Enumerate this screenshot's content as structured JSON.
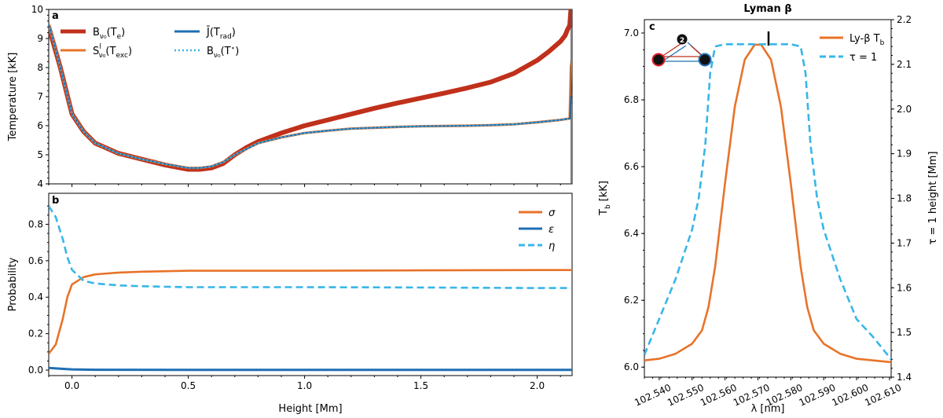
{
  "colors": {
    "dark_red": "#c0301a",
    "orange": "#e8732a",
    "blue": "#1f6fb5",
    "light_blue": "#38b6e8"
  },
  "panel_a": {
    "label": "a",
    "ylabel": "Temperature [kK]",
    "ylim": [
      4,
      10
    ],
    "yticks": [
      "4",
      "5",
      "6",
      "7",
      "8",
      "9",
      "10"
    ],
    "legend": {
      "B_te": {
        "base": "B",
        "sub": "ν₀",
        "arg": "(T",
        "argsub": "e",
        "close": ")"
      },
      "S_exc": {
        "base": "S",
        "sup": "l",
        "sub": "ν₀",
        "arg": "(T",
        "argsub": "exc",
        "close": ")"
      },
      "J_rad": {
        "base": "J̄",
        "arg": "(T",
        "argsub": "rad",
        "close": ")"
      },
      "B_star": {
        "base": "B",
        "sub": "ν₀",
        "arg": "(T",
        "argsup": "⋆",
        "close": ")"
      }
    }
  },
  "panel_b": {
    "label": "b",
    "ylabel": "Probability",
    "xlabel": "Height [Mm]",
    "ylim": [
      -0.03,
      0.97
    ],
    "yticks": [
      "0.0",
      "0.2",
      "0.4",
      "0.6",
      "0.8"
    ],
    "xticks": [
      "0.0",
      "0.5",
      "1.0",
      "1.5",
      "2.0"
    ],
    "legend": {
      "sigma": "σ",
      "eps": "ε",
      "eta": "η"
    }
  },
  "panel_c": {
    "label": "c",
    "title": "Lyman β",
    "xlabel": "λ [nm]",
    "ylabel_left_base": "T",
    "ylabel_left_sub": "b",
    "ylabel_left_unit": " [kK]",
    "ylabel_right": "τ = 1 height [Mm]",
    "yticks_left": [
      "6.0",
      "6.2",
      "6.4",
      "6.6",
      "6.8",
      "7.0"
    ],
    "yticks_right": [
      "1.4",
      "1.5",
      "1.6",
      "1.7",
      "1.8",
      "1.9",
      "2.0",
      "2.1",
      "2.2"
    ],
    "xticks": [
      "102.540",
      "102.550",
      "102.560",
      "102.570",
      "102.580",
      "102.590",
      "102.600",
      "102.610"
    ],
    "legend": {
      "tb_prefix": "Ly-β T",
      "tb_sub": "b",
      "tau": "τ = 1"
    },
    "diagram": {
      "upper_level": "2"
    }
  },
  "chart_data": [
    {
      "type": "line",
      "panel": "a",
      "xlim": [
        -0.1,
        2.15
      ],
      "ylim": [
        4,
        10
      ],
      "ylabel": "Temperature [kK]",
      "series": [
        {
          "name": "B_ν0(T_e)",
          "color": "#c0301a",
          "x": [
            -0.1,
            -0.05,
            0,
            0.05,
            0.1,
            0.2,
            0.3,
            0.4,
            0.5,
            0.55,
            0.6,
            0.65,
            0.7,
            0.75,
            0.8,
            0.9,
            1.0,
            1.1,
            1.2,
            1.3,
            1.4,
            1.5,
            1.6,
            1.7,
            1.8,
            1.9,
            2.0,
            2.05,
            2.1,
            2.12,
            2.13,
            2.14,
            2.145
          ],
          "y": [
            9.4,
            8.0,
            6.4,
            5.8,
            5.4,
            5.05,
            4.85,
            4.65,
            4.5,
            4.5,
            4.55,
            4.7,
            5.0,
            5.25,
            5.45,
            5.75,
            6.0,
            6.2,
            6.4,
            6.6,
            6.78,
            6.95,
            7.12,
            7.3,
            7.5,
            7.8,
            8.25,
            8.55,
            8.9,
            9.1,
            9.3,
            9.45,
            10.0
          ]
        },
        {
          "name": "S^l_ν0(T_exc)",
          "color": "#e8732a",
          "x": [
            -0.1,
            -0.05,
            0,
            0.05,
            0.1,
            0.2,
            0.3,
            0.4,
            0.5,
            0.55,
            0.6,
            0.65,
            0.7,
            0.75,
            0.8,
            0.9,
            1.0,
            1.1,
            1.2,
            1.3,
            1.4,
            1.5,
            1.6,
            1.7,
            1.8,
            1.9,
            2.0,
            2.1,
            2.14,
            2.145,
            2.15
          ],
          "y": [
            9.5,
            8.0,
            6.4,
            5.8,
            5.4,
            5.05,
            4.85,
            4.68,
            4.55,
            4.55,
            4.6,
            4.75,
            5.0,
            5.2,
            5.4,
            5.6,
            5.75,
            5.83,
            5.9,
            5.93,
            5.96,
            5.98,
            5.99,
            6.0,
            6.02,
            6.05,
            6.12,
            6.2,
            6.25,
            8.0,
            8.3
          ]
        },
        {
          "name": "J̄(T_rad)",
          "color": "#1f6fb5",
          "x": [
            -0.1,
            -0.05,
            0,
            0.05,
            0.1,
            0.2,
            0.3,
            0.4,
            0.5,
            0.55,
            0.6,
            0.65,
            0.7,
            0.75,
            0.8,
            0.9,
            1.0,
            1.1,
            1.2,
            1.3,
            1.4,
            1.5,
            1.6,
            1.7,
            1.8,
            1.9,
            2.0,
            2.1,
            2.14,
            2.145,
            2.15
          ],
          "y": [
            9.5,
            8.0,
            6.4,
            5.8,
            5.4,
            5.05,
            4.85,
            4.68,
            4.55,
            4.55,
            4.6,
            4.75,
            5.0,
            5.2,
            5.4,
            5.6,
            5.75,
            5.83,
            5.9,
            5.93,
            5.96,
            5.98,
            5.99,
            6.0,
            6.02,
            6.05,
            6.12,
            6.2,
            6.25,
            7.0,
            6.75
          ]
        },
        {
          "name": "B_ν0(T*)",
          "color": "#38b6e8",
          "x": [
            -0.1,
            -0.05,
            0,
            0.05,
            0.1,
            0.2,
            0.3,
            0.4,
            0.5,
            0.55,
            0.6,
            0.65,
            0.7,
            0.75,
            0.8,
            0.9,
            1.0,
            1.1,
            1.2,
            1.3,
            1.4,
            1.5,
            1.6,
            1.7,
            1.8,
            1.9,
            2.0,
            2.1,
            2.14
          ],
          "y": [
            9.5,
            8.0,
            6.4,
            5.8,
            5.4,
            5.05,
            4.85,
            4.68,
            4.55,
            4.55,
            4.6,
            4.75,
            5.0,
            5.2,
            5.4,
            5.6,
            5.75,
            5.83,
            5.9,
            5.93,
            5.96,
            5.98,
            5.99,
            6.0,
            6.02,
            6.05,
            6.12,
            6.2,
            6.25
          ]
        }
      ]
    },
    {
      "type": "line",
      "panel": "b",
      "xlim": [
        -0.1,
        2.15
      ],
      "ylim": [
        -0.03,
        0.97
      ],
      "xlabel": "Height [Mm]",
      "ylabel": "Probability",
      "series": [
        {
          "name": "σ",
          "color": "#e8732a",
          "x": [
            -0.1,
            -0.07,
            -0.04,
            -0.02,
            0,
            0.05,
            0.1,
            0.2,
            0.3,
            0.5,
            1.0,
            1.5,
            2.0,
            2.15
          ],
          "y": [
            0.09,
            0.14,
            0.28,
            0.4,
            0.47,
            0.51,
            0.525,
            0.535,
            0.54,
            0.545,
            0.545,
            0.547,
            0.549,
            0.549
          ]
        },
        {
          "name": "ε",
          "color": "#1f6fb5",
          "x": [
            -0.1,
            -0.05,
            0,
            0.1,
            0.5,
            1.0,
            1.5,
            2.0,
            2.15
          ],
          "y": [
            0.012,
            0.008,
            0.004,
            0.002,
            0.001,
            0.001,
            0.001,
            0.001,
            0.001
          ]
        },
        {
          "name": "η",
          "color": "#38b6e8",
          "x": [
            -0.1,
            -0.07,
            -0.04,
            -0.02,
            0,
            0.05,
            0.1,
            0.2,
            0.3,
            0.5,
            1.0,
            1.5,
            2.0,
            2.15
          ],
          "y": [
            0.9,
            0.84,
            0.72,
            0.62,
            0.55,
            0.49,
            0.475,
            0.465,
            0.46,
            0.455,
            0.455,
            0.453,
            0.45,
            0.45
          ]
        }
      ]
    },
    {
      "type": "line",
      "panel": "c",
      "title": "Lyman β",
      "xlabel": "λ [nm]",
      "xlim": [
        102.5355,
        102.6105
      ],
      "ylim_left": [
        5.97,
        7.04
      ],
      "ylim_right": [
        1.4,
        2.2
      ],
      "series": [
        {
          "name": "Ly-β T_b",
          "axis": "left",
          "color": "#e8732a",
          "x": [
            102.5355,
            102.54,
            102.545,
            102.55,
            102.553,
            102.555,
            102.557,
            102.56,
            102.563,
            102.566,
            102.569,
            102.571,
            102.574,
            102.577,
            102.58,
            102.583,
            102.585,
            102.587,
            102.59,
            102.595,
            102.6,
            102.605,
            102.6105
          ],
          "y": [
            6.02,
            6.025,
            6.04,
            6.07,
            6.11,
            6.18,
            6.3,
            6.55,
            6.78,
            6.92,
            6.965,
            6.965,
            6.92,
            6.78,
            6.55,
            6.3,
            6.18,
            6.11,
            6.07,
            6.04,
            6.025,
            6.02,
            6.015
          ]
        },
        {
          "name": "τ = 1",
          "axis": "right",
          "color": "#38b6e8",
          "x": [
            102.5355,
            102.54,
            102.545,
            102.55,
            102.552,
            102.554,
            102.5555,
            102.557,
            102.56,
            102.57,
            102.58,
            102.583,
            102.5845,
            102.586,
            102.588,
            102.59,
            102.595,
            102.6,
            102.605,
            102.6105
          ],
          "y": [
            1.45,
            1.53,
            1.62,
            1.73,
            1.8,
            1.92,
            2.08,
            2.14,
            2.145,
            2.145,
            2.145,
            2.14,
            2.08,
            1.92,
            1.8,
            1.73,
            1.62,
            1.53,
            1.49,
            1.44
          ]
        }
      ]
    }
  ]
}
